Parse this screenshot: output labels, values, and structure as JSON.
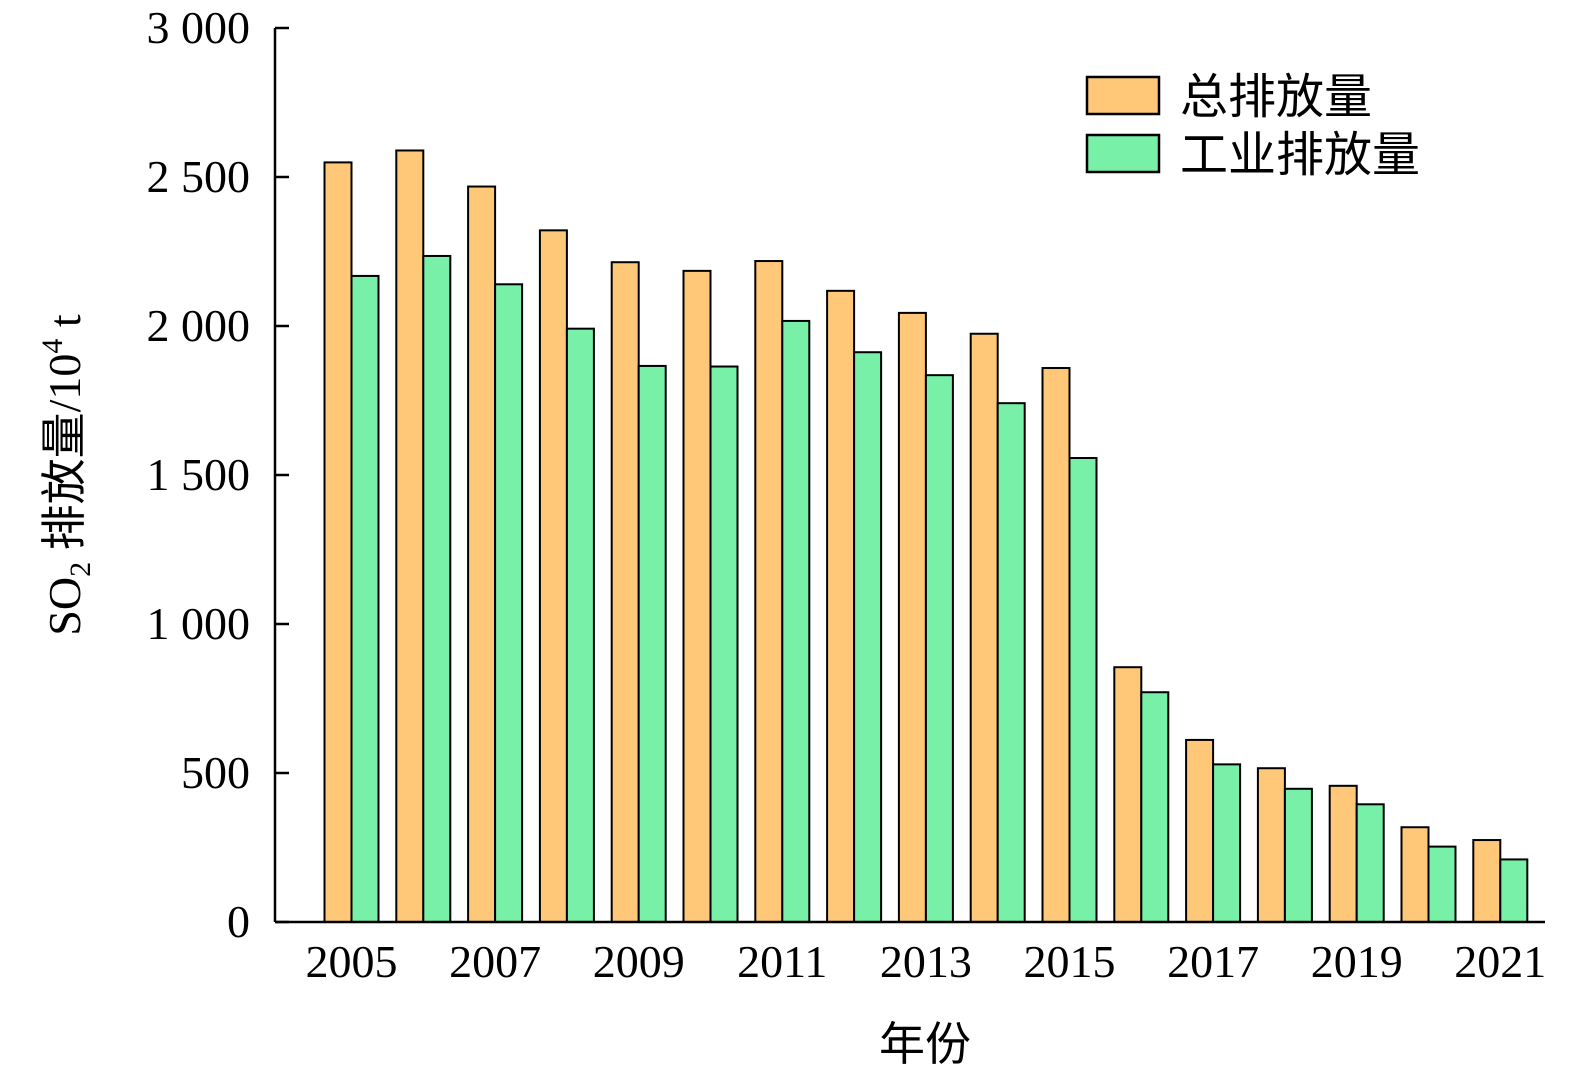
{
  "chart_data": {
    "type": "bar",
    "xlabel": "年份",
    "ylabel": "SO",
    "ylabel_subscript": "2",
    "ylabel_rest": " 排放量/10",
    "ylabel_superscript": "4",
    "ylabel_unit": " t",
    "ylim": [
      0,
      3000
    ],
    "yticks": [
      0,
      500,
      1000,
      1500,
      2000,
      2500,
      3000
    ],
    "ytick_labels": [
      "0",
      "500",
      "1 000",
      "1 500",
      "2 000",
      "2 500",
      "3 000"
    ],
    "categories": [
      "2005",
      "2006",
      "2007",
      "2008",
      "2009",
      "2010",
      "2011",
      "2012",
      "2013",
      "2014",
      "2015",
      "2016",
      "2017",
      "2018",
      "2019",
      "2020",
      "2021"
    ],
    "xtick_labels": [
      "2005",
      "2007",
      "2009",
      "2011",
      "2013",
      "2015",
      "2017",
      "2019",
      "2021"
    ],
    "legend_position": "top-right",
    "series": [
      {
        "name": "总排放量",
        "color": "#FFC878",
        "values": [
          2549,
          2589,
          2468,
          2321,
          2214,
          2185,
          2218,
          2118,
          2044,
          1974,
          1859,
          855,
          611,
          516,
          457,
          318,
          275
        ]
      },
      {
        "name": "工业排放量",
        "color": "#78F0A8",
        "values": [
          2168,
          2235,
          2140,
          1991,
          1866,
          1864,
          2017,
          1912,
          1835,
          1741,
          1557,
          771,
          529,
          447,
          395,
          253,
          210
        ]
      }
    ]
  }
}
